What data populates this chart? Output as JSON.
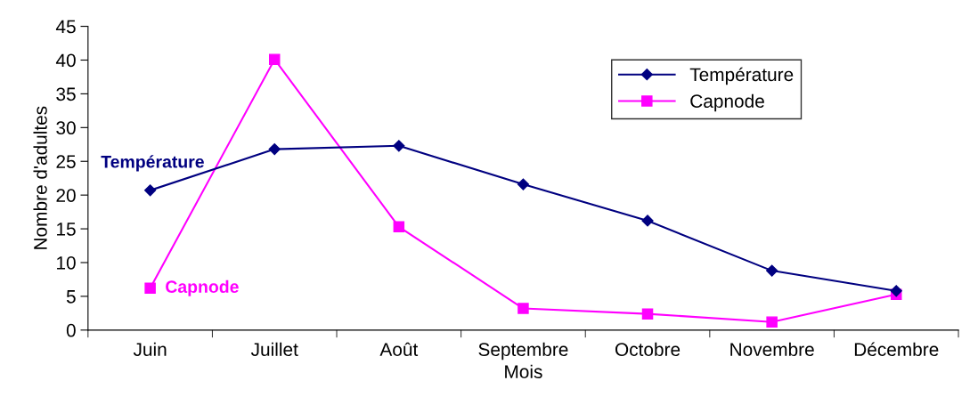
{
  "chart_data": {
    "type": "line",
    "xlabel": "Mois",
    "ylabel": "Nombre d'adultes",
    "categories": [
      "Juin",
      "Juillet",
      "Août",
      "Septembre",
      "Octobre",
      "Novembre",
      "Décembre"
    ],
    "series": [
      {
        "name": "Température",
        "color": "#000080",
        "marker": "diamond",
        "values": [
          20.7,
          26.8,
          27.3,
          21.6,
          16.2,
          8.8,
          5.8
        ]
      },
      {
        "name": "Capnode",
        "color": "#ff00ff",
        "marker": "square",
        "values": [
          6.2,
          40.1,
          15.3,
          3.2,
          2.4,
          1.2,
          5.3
        ]
      }
    ],
    "annotations": [
      {
        "text": "Température",
        "x": "Juin",
        "y": 20.7
      },
      {
        "text": "Capnode",
        "x": "Juin",
        "y": 6.2
      }
    ],
    "ylim": [
      0,
      45
    ],
    "yticks": [
      0,
      5,
      10,
      15,
      20,
      25,
      30,
      35,
      40,
      45
    ],
    "grid": false,
    "legend": "top right",
    "line_style": "solid"
  }
}
